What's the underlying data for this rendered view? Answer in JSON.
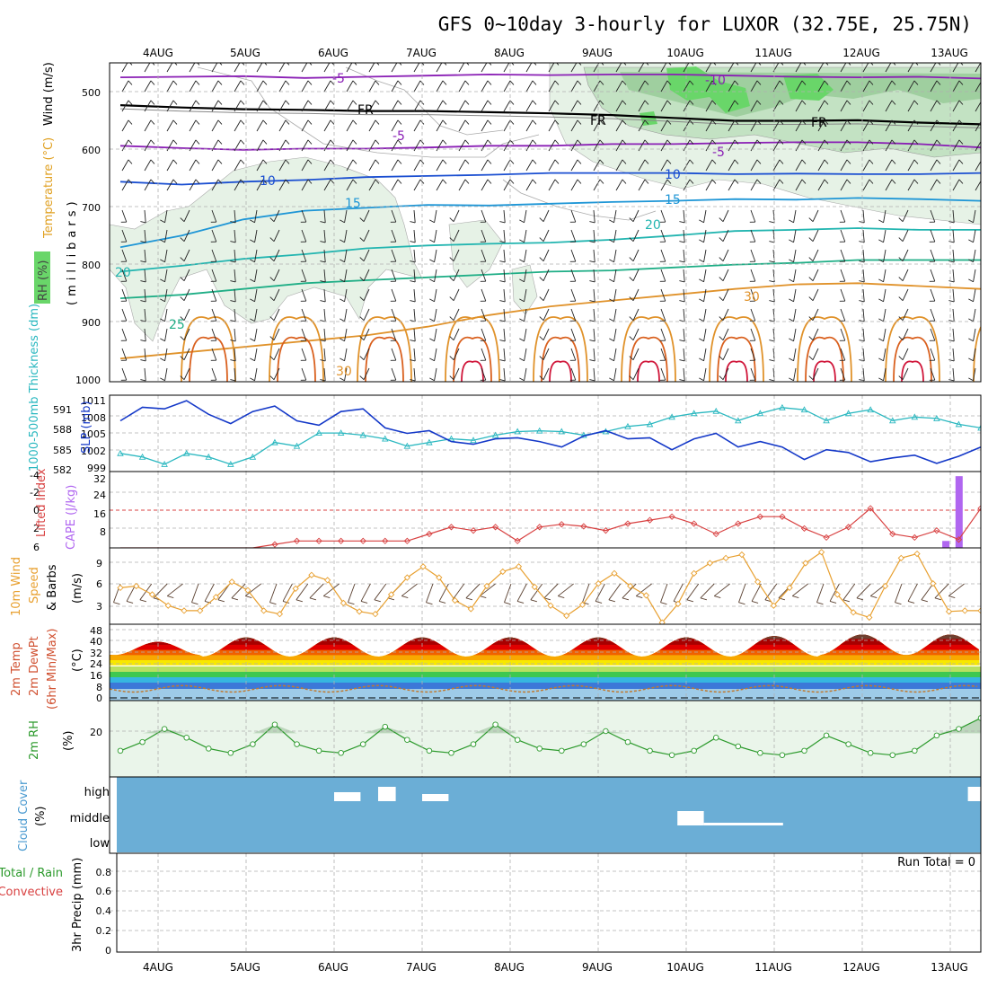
{
  "title": "GFS 0~10day 3-hourly for LUXOR (32.75E, 25.75N)",
  "run_total_label": "Run Total = 0",
  "date_labels": [
    "4AUG",
    "5AUG",
    "6AUG",
    "7AUG",
    "8AUG",
    "9AUG",
    "10AUG",
    "11AUG",
    "12AUG",
    "13AUG"
  ],
  "colors": {
    "temp_neg": "#8a1fb5",
    "temp_10": "#1b4fd1",
    "temp_15": "#1e96d6",
    "temp_20": "#22b5b0",
    "temp_25": "#1fae86",
    "temp_30": "#e0922a",
    "temp_35": "#d9601e",
    "temp_40": "#d0163a",
    "freezing": "#000000",
    "rh_light": "#dcefdc",
    "rh_mid": "#b8dcb8",
    "rh_high": "#69d669",
    "slp": "#1438c8",
    "thickness": "#2bb8c0",
    "li": "#d84040",
    "cape": "#b066f0",
    "wind_speed": "#e8a030",
    "rh2m": "#2c9a2c",
    "cloud_bg": "#6baed6",
    "cloud": "#ffffff"
  },
  "panels": {
    "upper": {
      "ylabel_wind": "Wind (m/s)",
      "ylabel_temp": "Temperature (°C)",
      "ylabel_rh": "RH (%)",
      "ylabel_unit": "(millibars)",
      "yticks": [
        "500",
        "600",
        "700",
        "800",
        "900",
        "1000"
      ]
    },
    "slp": {
      "ylabel_thick": "1000-500mb Thickness (dm)",
      "ylabel_slp": "SLP (mb)",
      "thick_ticks": [
        "591",
        "588",
        "585",
        "582"
      ],
      "slp_ticks": [
        "1011",
        "1008",
        "1005",
        "1002",
        "999"
      ]
    },
    "cape": {
      "ylabel_li": "Lifted Index",
      "ylabel_cape": "CAPE (J/kg)",
      "li_ticks": [
        "-4",
        "-2",
        "0",
        "2",
        "4",
        "6"
      ],
      "cape_ticks": [
        "32",
        "24",
        "16",
        "8"
      ]
    },
    "wind": {
      "ylabel_a": "10m Wind",
      "ylabel_b": "Speed",
      "ylabel_c": "& Barbs",
      "ylabel_unit": "(m/s)",
      "yticks": [
        "9",
        "6",
        "3"
      ]
    },
    "temp": {
      "ylabel_a": "2m Temp",
      "ylabel_b": "2m DewPt",
      "ylabel_c": "(6hr Min/Max)",
      "ylabel_unit": "(°C)",
      "yticks": [
        "48",
        "40",
        "32",
        "24",
        "16",
        "8",
        "0"
      ]
    },
    "rh": {
      "ylabel": "2m RH",
      "ylabel_unit": "(%)",
      "yticks": [
        "20"
      ]
    },
    "cloud": {
      "ylabel": "Cloud Cover",
      "ylabel_unit": "(%)",
      "levels": [
        "high",
        "middle",
        "low"
      ]
    },
    "precip": {
      "ylabel_a": "Total / Rain",
      "ylabel_b": "Convective",
      "ylabel_unit": "3hr Precip (mm)",
      "yticks": [
        "0.8",
        "0.6",
        "0.4",
        "0.2",
        "0"
      ]
    }
  },
  "chart_data": [
    {
      "type": "line",
      "name": "upper-air temperature / RH cross-section",
      "x_range_days": [
        0,
        10
      ],
      "y_range_mb": [
        450,
        1000
      ],
      "contour_labels": [
        "-10",
        "-5",
        "FR",
        "-5",
        "10",
        "15",
        "20",
        "25",
        "30",
        "30"
      ],
      "series": [
        {
          "name": "-5",
          "color_key": "temp_neg",
          "values": [
            475,
            474,
            473,
            476,
            474,
            472,
            470,
            471,
            470,
            470,
            472,
            474,
            475,
            474,
            477
          ]
        },
        {
          "name": "FR",
          "color_key": "freezing",
          "values": [
            523,
            527,
            530,
            531,
            533,
            533,
            535,
            537,
            540,
            545,
            550,
            550,
            549,
            553,
            556
          ]
        },
        {
          "name": "-5",
          "color_key": "temp_neg",
          "values": [
            593,
            597,
            600,
            598,
            598,
            596,
            593,
            593,
            590,
            590,
            588,
            587,
            587,
            590,
            596
          ]
        },
        {
          "name": "10",
          "color_key": "temp_10",
          "values": [
            655,
            660,
            655,
            652,
            647,
            645,
            643,
            640,
            640,
            640,
            642,
            641,
            642,
            642,
            640
          ]
        },
        {
          "name": "15",
          "color_key": "temp_15",
          "values": [
            768,
            748,
            720,
            705,
            700,
            695,
            696,
            693,
            690,
            688,
            685,
            686,
            683,
            685,
            688
          ]
        },
        {
          "name": "20",
          "color_key": "temp_20",
          "values": [
            810,
            800,
            788,
            780,
            770,
            765,
            762,
            760,
            755,
            748,
            740,
            738,
            735,
            738,
            738
          ]
        },
        {
          "name": "25",
          "color_key": "temp_25",
          "values": [
            856,
            850,
            840,
            830,
            825,
            820,
            815,
            810,
            808,
            803,
            798,
            795,
            790,
            790,
            790
          ]
        },
        {
          "name": "30",
          "color_key": "temp_30",
          "values": [
            960,
            950,
            940,
            930,
            920,
            905,
            885,
            870,
            860,
            850,
            840,
            832,
            830,
            835,
            840
          ]
        }
      ]
    },
    {
      "type": "line",
      "name": "SLP and thickness",
      "x_days": [
        0,
        0.25,
        0.5,
        0.75,
        1,
        1.25,
        1.5,
        1.75,
        2,
        2.25,
        2.5,
        2.75,
        3,
        3.25,
        3.5,
        3.75,
        4,
        4.25,
        4.5,
        4.75,
        5,
        5.25,
        5.5,
        5.75,
        6,
        6.25,
        6.5,
        6.75,
        7,
        7.25,
        7.5,
        7.75,
        8,
        8.25,
        8.5,
        8.75,
        9,
        9.25,
        9.5,
        9.75
      ],
      "series": [
        {
          "name": "SLP (mb)",
          "color_key": "slp",
          "ylim": [
            998,
            1012
          ],
          "values": [
            1007.3,
            1009.8,
            1009.5,
            1011.0,
            1008.5,
            1006.8,
            1009.0,
            1010.0,
            1007.3,
            1006.5,
            1009.0,
            1009.5,
            1006.0,
            1005.0,
            1005.5,
            1003.5,
            1003.0,
            1004.0,
            1004.2,
            1003.5,
            1002.5,
            1004.5,
            1005.5,
            1004.0,
            1004.2,
            1002.0,
            1004.0,
            1005.0,
            1002.5,
            1003.5,
            1002.5,
            1000.2,
            1002.0,
            1001.5,
            999.8,
            1000.5,
            1001.0,
            999.5,
            1000.8,
            1002.5
          ]
        },
        {
          "name": "Thickness (dm)",
          "color_key": "thickness",
          "ylim": [
            582,
            592.5
          ],
          "values": [
            584.5,
            584.0,
            583.0,
            584.5,
            584.0,
            583.0,
            584.0,
            586.0,
            585.5,
            587.3,
            587.3,
            587.0,
            586.5,
            585.5,
            586.0,
            586.5,
            586.3,
            587.0,
            587.5,
            587.6,
            587.5,
            587.0,
            587.5,
            588.2,
            588.5,
            589.5,
            590.0,
            590.3,
            589.0,
            590.0,
            590.8,
            590.5,
            589.0,
            590.0,
            590.5,
            589.0,
            589.5,
            589.3,
            588.5,
            588.0
          ]
        }
      ]
    },
    {
      "type": "bar",
      "name": "Lifted index / CAPE",
      "li_values": [
        6,
        6,
        6,
        6,
        6,
        6,
        6,
        5.5,
        5,
        5,
        5,
        5,
        5,
        5,
        4,
        3,
        3.5,
        3,
        5,
        3,
        2.6,
        2.9,
        3.5,
        2.5,
        2,
        1.5,
        2.5,
        4,
        2.5,
        1.5,
        1.5,
        3.2,
        4.5,
        3,
        0.3,
        4,
        4.5,
        3.5,
        4.8,
        0.3
      ],
      "cape_bars": [
        {
          "x_day": 8.95,
          "value": 3
        },
        {
          "x_day": 9.1,
          "value": 31
        },
        {
          "x_day": 9.8,
          "value": 15
        }
      ],
      "li_ylim": [
        -5,
        6
      ],
      "cape_ylim": [
        0,
        33
      ]
    },
    {
      "type": "line",
      "name": "10m wind speed",
      "color_key": "wind_speed",
      "ylim": [
        1,
        10
      ],
      "values": [
        5.3,
        5.5,
        4.5,
        3.2,
        2.6,
        2.6,
        4.2,
        6.0,
        5.0,
        2.6,
        2.2,
        5.2,
        6.8,
        6.2,
        3.5,
        2.5,
        2.2,
        4.5,
        6.5,
        7.8,
        6.5,
        3.8,
        2.8,
        5.5,
        7.2,
        7.8,
        5.4,
        3.2,
        2.0,
        3.3,
        5.8,
        7.0,
        5.5,
        4.4,
        1.2,
        3.4,
        7.0,
        8.2,
        8.8,
        9.2,
        6.0,
        3.2,
        5.3,
        8.2,
        9.5,
        4.5,
        2.4,
        1.8,
        5.5,
        8.8,
        9.3,
        5.8,
        2.5,
        2.6,
        2.6
      ]
    },
    {
      "type": "area",
      "name": "2m temperature",
      "ylim": [
        -2,
        50
      ],
      "daily_max": [
        38,
        41,
        41,
        41,
        41,
        41,
        41,
        42,
        43,
        43
      ],
      "daily_min": [
        29,
        28,
        28,
        28,
        28,
        28,
        28,
        28,
        29,
        29
      ],
      "dewpoint_approx": 6
    },
    {
      "type": "line",
      "name": "2m RH",
      "color_key": "rh2m",
      "ylim": [
        0,
        35
      ],
      "values": [
        12,
        16,
        22,
        18,
        13,
        11,
        15,
        24,
        15,
        12,
        11,
        15,
        23,
        17,
        12,
        11,
        15,
        24,
        17,
        13,
        12,
        15,
        21,
        16,
        12,
        10,
        12,
        18,
        14,
        11,
        10,
        12,
        19,
        15,
        11,
        10,
        12,
        19,
        22,
        27
      ]
    },
    {
      "type": "bar",
      "name": "cloud cover",
      "high_blocks_days": [
        [
          2.0,
          2.3
        ],
        [
          2.5,
          2.7
        ],
        [
          3.0,
          3.3
        ],
        [
          9.2,
          9.4
        ],
        [
          9.5,
          9.9
        ]
      ],
      "mid_blocks_days": [
        [
          5.9,
          6.2
        ],
        [
          6.2,
          7.1
        ]
      ]
    },
    {
      "type": "bar",
      "name": "3hr precipitation",
      "ylim": [
        0,
        1
      ],
      "values": []
    }
  ]
}
